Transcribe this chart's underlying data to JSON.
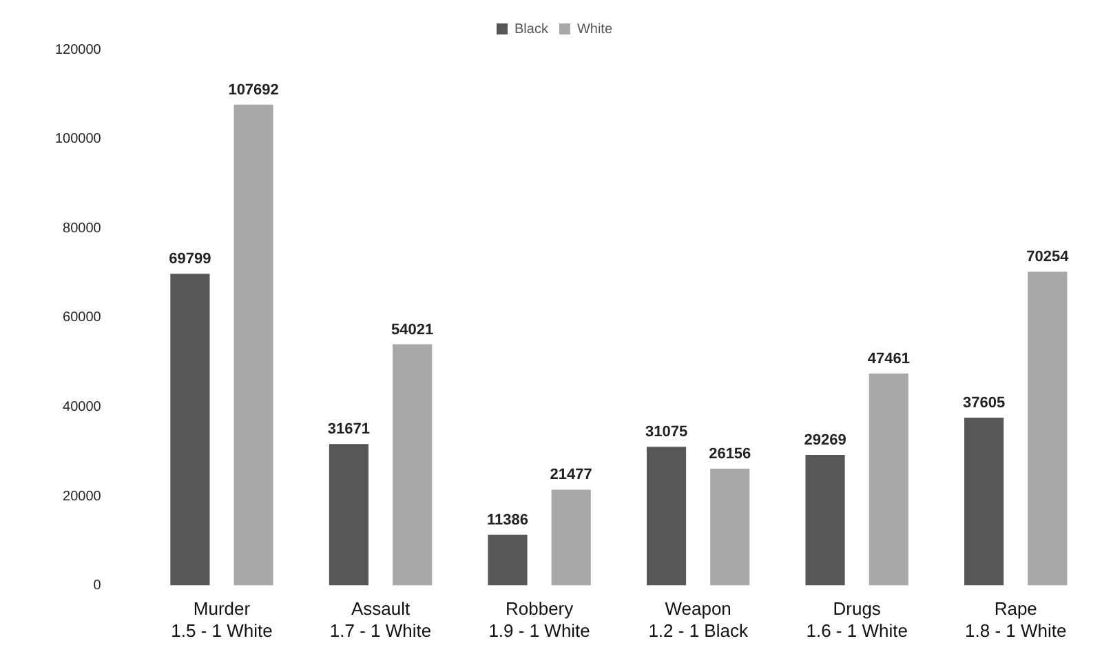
{
  "chart_data": {
    "type": "bar",
    "categories": [
      "Murder\n1.5 - 1 White",
      "Assault\n1.7 - 1 White",
      "Robbery\n1.9 - 1 White",
      "Weapon\n1.2 - 1 Black",
      "Drugs\n1.6 - 1 White",
      "Rape\n1.8 - 1 White"
    ],
    "series": [
      {
        "name": "Black",
        "color": "#575757",
        "values": [
          69799,
          31671,
          11386,
          31075,
          29269,
          37605
        ]
      },
      {
        "name": "White",
        "color": "#a8a8a8",
        "values": [
          107692,
          54021,
          21477,
          26156,
          47461,
          70254
        ]
      }
    ],
    "ylim": [
      0,
      120000
    ],
    "yticks": [
      0,
      20000,
      40000,
      60000,
      80000,
      100000,
      120000
    ],
    "grid": false,
    "legend": "top",
    "data_labels": true
  }
}
